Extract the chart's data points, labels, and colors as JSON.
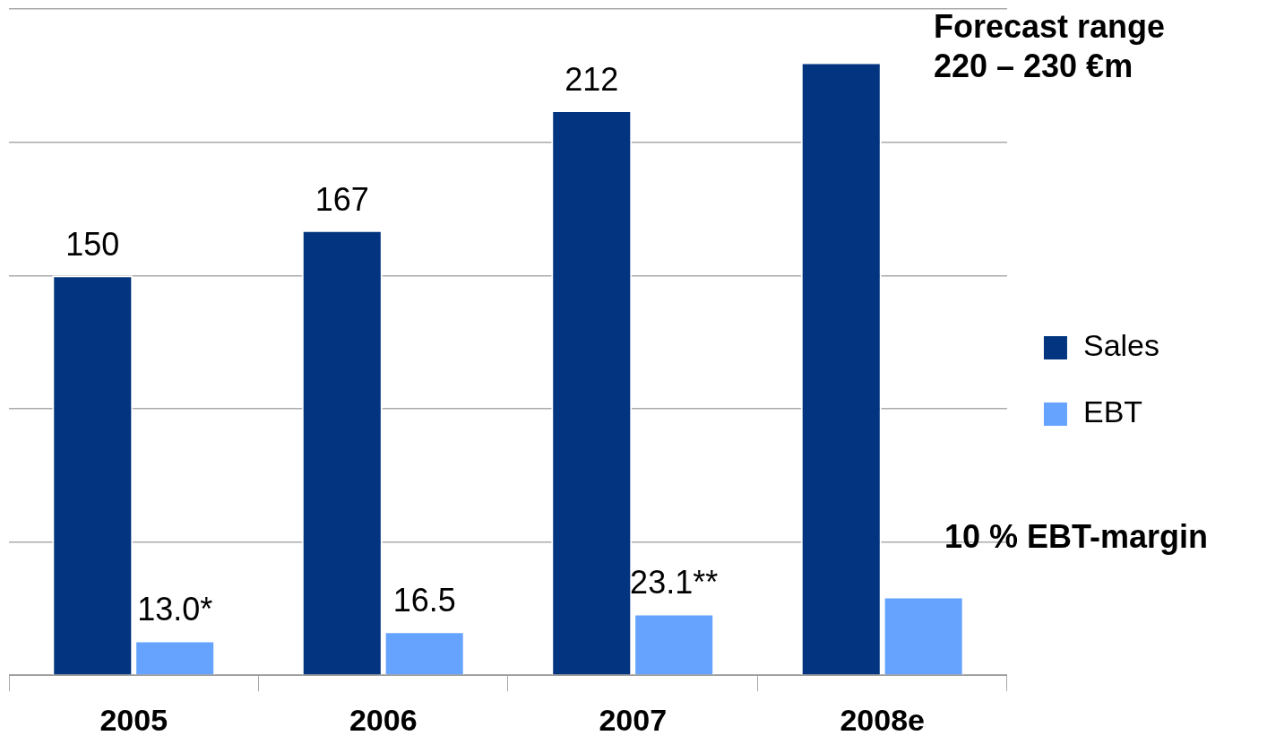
{
  "chart_data": {
    "type": "bar",
    "categories": [
      "2005",
      "2006",
      "2007",
      "2008e"
    ],
    "series": [
      {
        "name": "Sales",
        "color": "#02347f",
        "values": [
          150,
          167,
          212,
          230
        ],
        "value_labels": [
          "150",
          "167",
          "212",
          null
        ]
      },
      {
        "name": "EBT",
        "color": "#66a3ff",
        "values": [
          13,
          16.5,
          23.1,
          29.5
        ],
        "value_labels": [
          "13.0*",
          "16.5",
          "23.1**",
          null
        ]
      }
    ],
    "grid": "y",
    "legend": "right",
    "tick_labels": "x",
    "annotations": [
      "Forecast range\n220 – 230 €m",
      "10 % EBT-margin"
    ]
  }
}
